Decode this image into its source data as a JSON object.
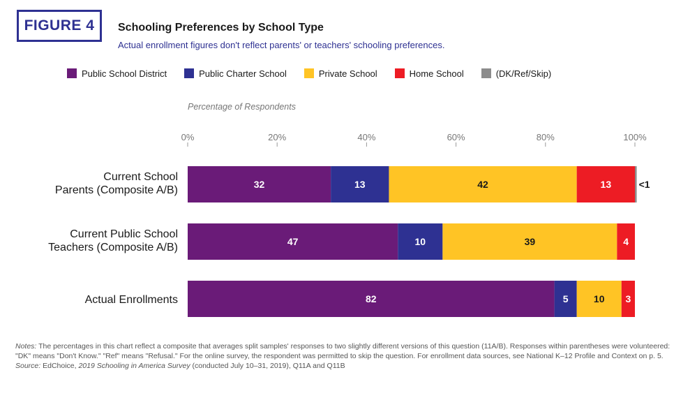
{
  "figure_label": "FIGURE 4",
  "colors": {
    "brand": "#2e3192",
    "public_school_district": "#6a1b78",
    "public_charter_school": "#2e3192",
    "private_school": "#ffc425",
    "home_school": "#ed1c24",
    "dk_ref_skip": "#8c8c8c"
  },
  "notes": {
    "notes_label": "Notes:",
    "notes_text": " The percentages in this chart reflect a composite that averages split samples' responses to two slightly different versions of this question (11A/B). Responses within parentheses were volunteered: \"DK\" means \"Don't Know.\" \"Ref\" means \"Refusal.\" For the online survey, the respondent was permitted to skip the question. For enrollment data sources, see National K–12 Profile and Context on p. 5.",
    "source_label": "Source:",
    "source_pre": " EdChoice, ",
    "source_italic": "2019 Schooling in America Survey",
    "source_post": " (conducted July 10–31, 2019), Q11A and Q11B"
  },
  "chart_data": {
    "type": "bar",
    "orientation": "horizontal",
    "stacked": true,
    "title": "Schooling Preferences by School Type",
    "subtitle": "Actual enrollment figures don't reflect parents' or teachers' schooling preferences.",
    "xlabel": "Percentage of Respondents",
    "xlim": [
      0,
      100
    ],
    "x_ticks": [
      "0%",
      "20%",
      "40%",
      "60%",
      "80%",
      "100%"
    ],
    "legend_position": "top",
    "categories": [
      "Current School Parents (Composite A/B)",
      "Current Public School Teachers (Composite A/B)",
      "Actual Enrollments"
    ],
    "category_lines": [
      [
        "Current School",
        "Parents (Composite A/B)"
      ],
      [
        "Current Public School",
        "Teachers (Composite A/B)"
      ],
      [
        "Actual Enrollments"
      ]
    ],
    "series": [
      {
        "name": "Public School District",
        "color": "#6a1b78",
        "values": [
          32,
          47,
          82
        ],
        "labels": [
          "32",
          "47",
          "82"
        ]
      },
      {
        "name": "Public Charter School",
        "color": "#2e3192",
        "values": [
          13,
          10,
          5
        ],
        "labels": [
          "13",
          "10",
          "5"
        ]
      },
      {
        "name": "Private School",
        "color": "#ffc425",
        "values": [
          42,
          39,
          10
        ],
        "labels": [
          "42",
          "39",
          "10"
        ]
      },
      {
        "name": "Home School",
        "color": "#ed1c24",
        "values": [
          13,
          4,
          3
        ],
        "labels": [
          "13",
          "4",
          "3"
        ]
      },
      {
        "name": "(DK/Ref/Skip)",
        "color": "#8c8c8c",
        "values": [
          0.4,
          0,
          0
        ],
        "labels": [
          "<1",
          "",
          ""
        ]
      }
    ]
  }
}
